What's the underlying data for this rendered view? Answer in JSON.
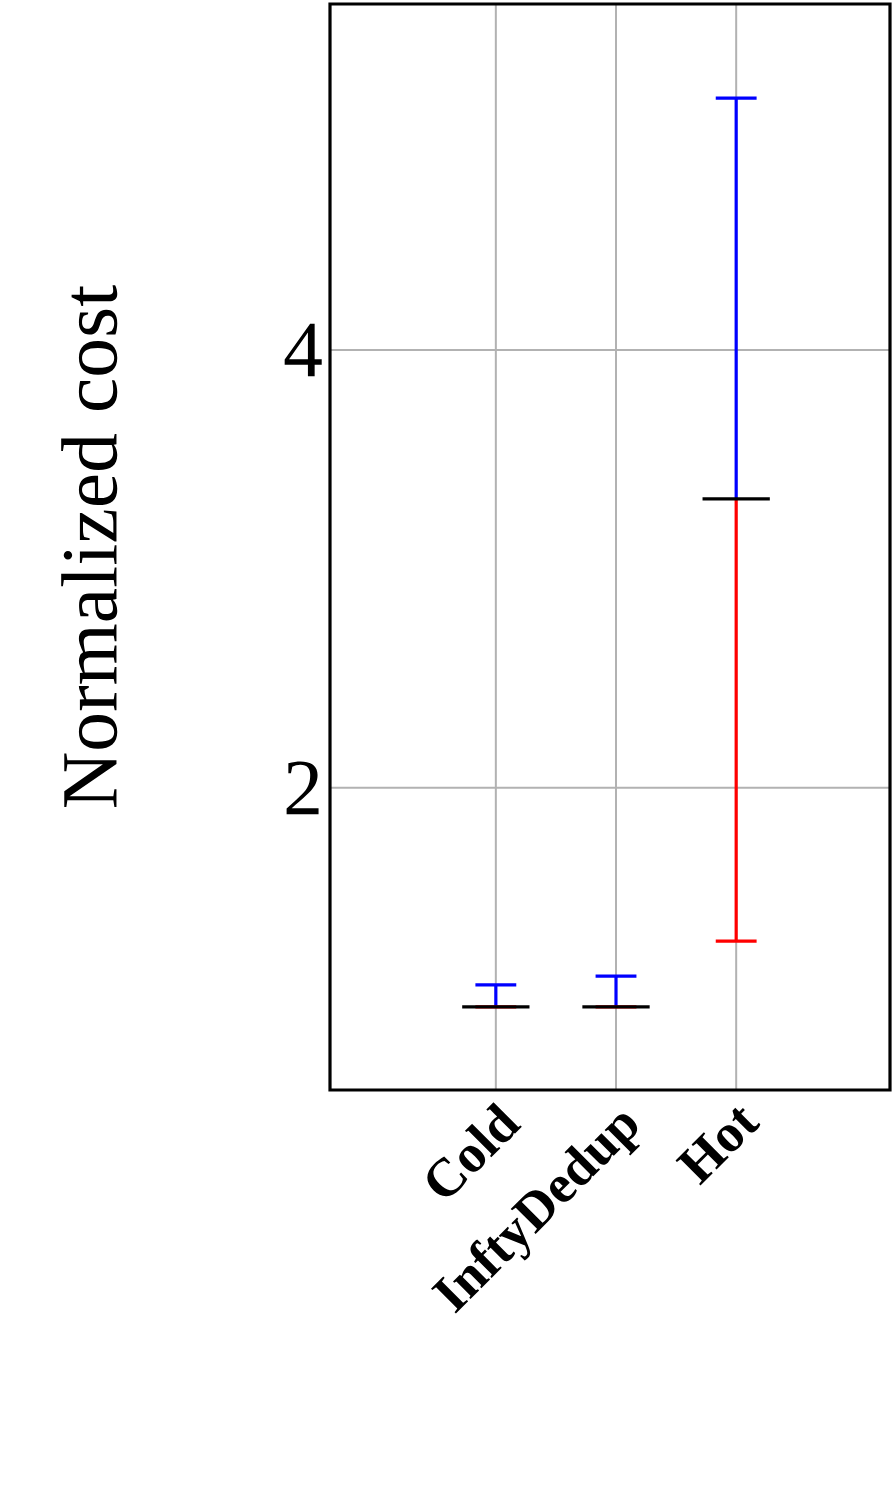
{
  "chart_data": {
    "type": "box",
    "ylabel": "Normalized cost",
    "categories": [
      "Cold",
      "InftyDedup",
      "Hot"
    ],
    "boxes": [
      {
        "low": 1.0,
        "q1": 1.0,
        "median": 1.0,
        "q3": 1.0,
        "high": 1.1
      },
      {
        "low": 1.0,
        "q1": 1.0,
        "median": 1.0,
        "q3": 1.0,
        "high": 1.14
      },
      {
        "low": 1.3,
        "q1": 3.32,
        "median": 3.32,
        "q3": 3.32,
        "high": 5.15
      }
    ],
    "ylim": [
      0.62,
      5.58
    ],
    "yticks": [
      2,
      4
    ],
    "grid": true
  }
}
